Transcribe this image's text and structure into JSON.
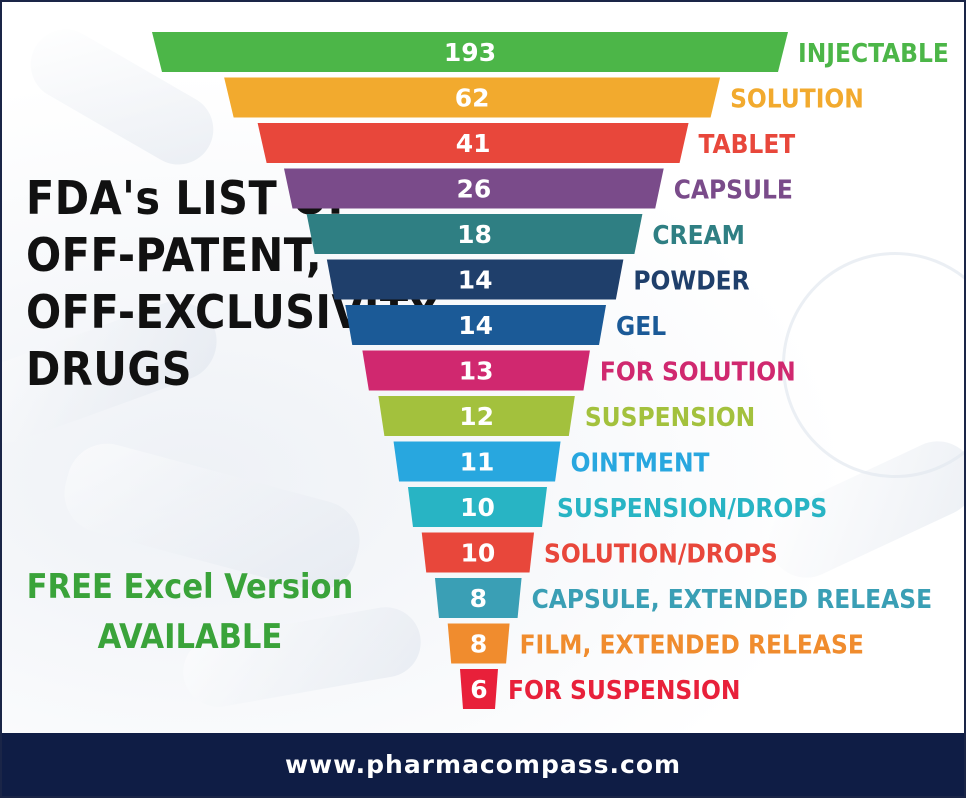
{
  "heading": {
    "lines": [
      "FDA's LIST OF",
      "OFF-PATENT,",
      "OFF-EXCLUSIVITY",
      "DRUGS"
    ]
  },
  "promo": {
    "lines": [
      "FREE Excel Version",
      "AVAILABLE"
    ],
    "color": "#3aa33a"
  },
  "footer": {
    "url": "www.pharmacompass.com",
    "background": "#0f1d45"
  },
  "chart_data": {
    "type": "bar",
    "orientation": "funnel",
    "title": "FDA's LIST OF OFF-PATENT, OFF-EXCLUSIVITY DRUGS",
    "categories": [
      "INJECTABLE",
      "SOLUTION",
      "TABLET",
      "CAPSULE",
      "CREAM",
      "POWDER",
      "GEL",
      "FOR SOLUTION",
      "SUSPENSION",
      "OINTMENT",
      "SUSPENSION/DROPS",
      "SOLUTION/DROPS",
      "CAPSULE, EXTENDED RELEASE",
      "FILM, EXTENDED RELEASE",
      "FOR SUSPENSION"
    ],
    "values": [
      193,
      62,
      41,
      26,
      18,
      14,
      14,
      13,
      12,
      11,
      10,
      10,
      8,
      8,
      6
    ],
    "colors": [
      "#4cb648",
      "#f2aa2e",
      "#e8473b",
      "#7a4b8a",
      "#2f7f83",
      "#1f3f6b",
      "#1b5a97",
      "#d0286f",
      "#a3c13d",
      "#28a7df",
      "#28b4c4",
      "#e8473b",
      "#3a9fb5",
      "#f08c2e",
      "#e8203a"
    ],
    "label_colors": [
      "#4cb648",
      "#f2aa2e",
      "#e8473b",
      "#7a4b8a",
      "#2f7f83",
      "#1f3f6b",
      "#1b5a97",
      "#d0286f",
      "#a3c13d",
      "#28a7df",
      "#28b4c4",
      "#e8473b",
      "#3a9fb5",
      "#f08c2e",
      "#e8203a"
    ],
    "xlabel": "",
    "ylabel": "",
    "grid": false,
    "legend": "none"
  }
}
